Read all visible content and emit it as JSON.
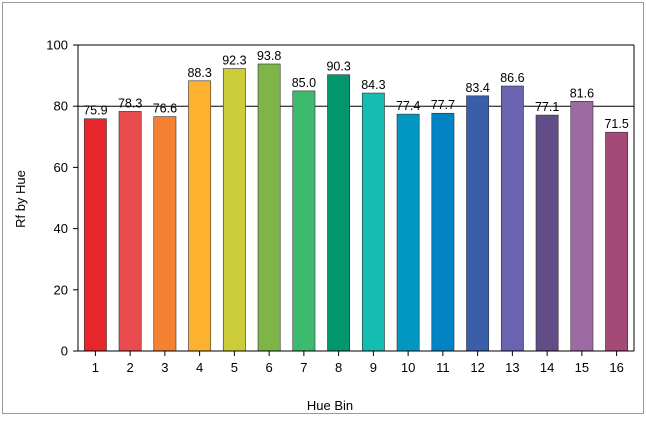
{
  "chart_data": {
    "type": "bar",
    "title": "",
    "xlabel": "Hue Bin",
    "ylabel": "Rf by Hue",
    "ylim": [
      0,
      100
    ],
    "yticks": [
      0,
      20,
      40,
      60,
      80,
      100
    ],
    "grid": "horizontal at 80 and 100",
    "legend": "none",
    "categories": [
      "1",
      "2",
      "3",
      "4",
      "5",
      "6",
      "7",
      "8",
      "9",
      "10",
      "11",
      "12",
      "13",
      "14",
      "15",
      "16"
    ],
    "values": [
      75.9,
      78.3,
      76.6,
      88.3,
      92.3,
      93.8,
      85.0,
      90.3,
      84.3,
      77.4,
      77.7,
      83.4,
      86.6,
      77.1,
      81.6,
      71.5
    ],
    "value_labels": [
      "75.9",
      "78.3",
      "76.6",
      "88.3",
      "92.3",
      "93.8",
      "85.0",
      "90.3",
      "84.3",
      "77.4",
      "77.7",
      "83.4",
      "86.6",
      "77.1",
      "81.6",
      "71.5"
    ],
    "colors": [
      "#e7262b",
      "#e84c4e",
      "#f58232",
      "#fdb12f",
      "#cccc3a",
      "#7db548",
      "#3dba6d",
      "#02956e",
      "#14bdb0",
      "#0197c1",
      "#0283c3",
      "#3a5ea8",
      "#6a64b0",
      "#634d86",
      "#9d6aa2",
      "#a44a76"
    ]
  }
}
